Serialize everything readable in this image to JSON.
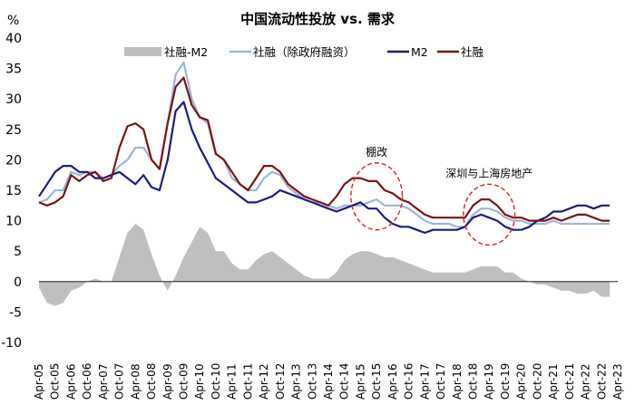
{
  "chart_data": {
    "type": "line",
    "title": "中国流动性投放 vs. 需求",
    "y_unit_label": "%",
    "ylim": [
      -10,
      40
    ],
    "yticks": [
      -10,
      -5,
      0,
      5,
      10,
      15,
      20,
      25,
      30,
      35,
      40
    ],
    "xlabel": "",
    "ylabel": "%",
    "x_start": "Apr-05",
    "x_end": "Apr-23",
    "x_ticks": [
      "Apr-05",
      "Oct-05",
      "Apr-06",
      "Oct-06",
      "Apr-07",
      "Oct-07",
      "Apr-08",
      "Oct-08",
      "Apr-09",
      "Oct-09",
      "Apr-10",
      "Oct-10",
      "Apr-11",
      "Oct-11",
      "Apr-12",
      "Oct-12",
      "Apr-13",
      "Oct-13",
      "Apr-14",
      "Oct-14",
      "Apr-15",
      "Oct-15",
      "Apr-16",
      "Oct-16",
      "Apr-17",
      "Oct-17",
      "Apr-18",
      "Oct-18",
      "Apr-19",
      "Oct-19",
      "Apr-20",
      "Oct-20",
      "Apr-21",
      "Oct-21",
      "Apr-22",
      "Oct-22",
      "Apr-23"
    ],
    "legend": [
      {
        "name": "社融-M2",
        "color": "#bfbfbf",
        "kind": "area"
      },
      {
        "name": "社融（除政府融资）",
        "color": "#9cb7d6",
        "kind": "line"
      },
      {
        "name": "M2",
        "color": "#1c1c84",
        "kind": "line"
      },
      {
        "name": "社融",
        "color": "#7b1416",
        "kind": "line"
      }
    ],
    "series": [
      {
        "name": "社融",
        "color": "#7b1416",
        "points": [
          [
            0,
            13
          ],
          [
            0.5,
            12.5
          ],
          [
            1,
            13
          ],
          [
            1.5,
            14
          ],
          [
            2,
            17.5
          ],
          [
            2.5,
            16.5
          ],
          [
            3,
            17.5
          ],
          [
            3.5,
            18
          ],
          [
            4,
            16.5
          ],
          [
            4.5,
            17
          ],
          [
            5,
            22
          ],
          [
            5.5,
            25.5
          ],
          [
            6,
            26
          ],
          [
            6.5,
            25
          ],
          [
            7,
            20
          ],
          [
            7.5,
            18.5
          ],
          [
            8,
            26
          ],
          [
            8.5,
            32
          ],
          [
            9,
            33.5
          ],
          [
            9.5,
            29
          ],
          [
            10,
            27
          ],
          [
            10.5,
            26.5
          ],
          [
            11,
            21
          ],
          [
            11.5,
            20
          ],
          [
            12,
            18
          ],
          [
            12.5,
            16
          ],
          [
            13,
            15
          ],
          [
            13.5,
            17
          ],
          [
            14,
            19
          ],
          [
            14.5,
            19
          ],
          [
            15,
            18
          ],
          [
            15.5,
            16
          ],
          [
            16,
            15
          ],
          [
            16.5,
            14
          ],
          [
            17,
            13.5
          ],
          [
            17.5,
            13
          ],
          [
            18,
            12.5
          ],
          [
            18.5,
            14
          ],
          [
            19,
            16
          ],
          [
            19.5,
            17
          ],
          [
            20,
            17
          ],
          [
            20.5,
            16.5
          ],
          [
            21,
            16.5
          ],
          [
            21.5,
            15
          ],
          [
            22,
            14.5
          ],
          [
            22.5,
            13.5
          ],
          [
            23,
            13
          ],
          [
            23.5,
            12
          ],
          [
            24,
            11
          ],
          [
            24.5,
            10.5
          ],
          [
            25,
            10.5
          ],
          [
            25.5,
            10.5
          ],
          [
            26,
            10.5
          ],
          [
            26.5,
            10.5
          ],
          [
            27,
            12.5
          ],
          [
            27.5,
            13.5
          ],
          [
            28,
            13.5
          ],
          [
            28.5,
            12.5
          ],
          [
            29,
            11
          ],
          [
            29.5,
            10.5
          ],
          [
            30,
            10.5
          ],
          [
            30.5,
            10
          ],
          [
            31,
            10
          ],
          [
            31.5,
            10
          ],
          [
            32,
            10.5
          ],
          [
            32.5,
            10
          ],
          [
            33,
            10.5
          ],
          [
            33.5,
            11
          ],
          [
            34,
            11
          ],
          [
            34.5,
            10.5
          ],
          [
            35,
            10
          ],
          [
            35.5,
            10
          ]
        ]
      },
      {
        "name": "社融（除政府融资）",
        "color": "#9cb7d6",
        "points": [
          [
            0,
            13
          ],
          [
            0.5,
            13.5
          ],
          [
            1,
            15
          ],
          [
            1.5,
            15
          ],
          [
            2,
            18
          ],
          [
            2.5,
            17.5
          ],
          [
            3,
            18
          ],
          [
            3.5,
            18
          ],
          [
            4,
            17
          ],
          [
            4.5,
            17.5
          ],
          [
            5,
            19
          ],
          [
            5.5,
            20
          ],
          [
            6,
            22
          ],
          [
            6.5,
            22
          ],
          [
            7,
            20
          ],
          [
            7.5,
            18.5
          ],
          [
            8,
            26
          ],
          [
            8.5,
            34
          ],
          [
            9,
            36
          ],
          [
            9.5,
            30
          ],
          [
            10,
            27
          ],
          [
            10.5,
            26
          ],
          [
            11,
            21
          ],
          [
            11.5,
            20
          ],
          [
            12,
            17
          ],
          [
            12.5,
            16
          ],
          [
            13,
            15
          ],
          [
            13.5,
            15
          ],
          [
            14,
            17
          ],
          [
            14.5,
            18
          ],
          [
            15,
            17.5
          ],
          [
            15.5,
            15.5
          ],
          [
            16,
            14.5
          ],
          [
            16.5,
            13.5
          ],
          [
            17,
            13
          ],
          [
            17.5,
            13
          ],
          [
            18,
            12.5
          ],
          [
            18.5,
            12
          ],
          [
            19,
            12.5
          ],
          [
            19.5,
            12.5
          ],
          [
            20,
            12.5
          ],
          [
            20.5,
            13
          ],
          [
            21,
            13.5
          ],
          [
            21.5,
            12.5
          ],
          [
            22,
            12.5
          ],
          [
            22.5,
            12.5
          ],
          [
            23,
            12
          ],
          [
            23.5,
            11
          ],
          [
            24,
            10
          ],
          [
            24.5,
            9.5
          ],
          [
            25,
            9.5
          ],
          [
            25.5,
            9.5
          ],
          [
            26,
            9
          ],
          [
            26.5,
            9
          ],
          [
            27,
            11
          ],
          [
            27.5,
            12
          ],
          [
            28,
            12
          ],
          [
            28.5,
            11.5
          ],
          [
            29,
            10.5
          ],
          [
            29.5,
            10
          ],
          [
            30,
            10
          ],
          [
            30.5,
            9.5
          ],
          [
            31,
            9.5
          ],
          [
            31.5,
            9.5
          ],
          [
            32,
            10
          ],
          [
            32.5,
            9.5
          ],
          [
            33,
            9.5
          ],
          [
            33.5,
            9.5
          ],
          [
            34,
            9.5
          ],
          [
            34.5,
            9.5
          ],
          [
            35,
            9.5
          ],
          [
            35.5,
            9.5
          ]
        ]
      },
      {
        "name": "M2",
        "color": "#1c1c84",
        "points": [
          [
            0,
            14
          ],
          [
            0.5,
            16
          ],
          [
            1,
            18
          ],
          [
            1.5,
            19
          ],
          [
            2,
            19
          ],
          [
            2.5,
            18
          ],
          [
            3,
            18
          ],
          [
            3.5,
            17
          ],
          [
            4,
            17
          ],
          [
            4.5,
            17.5
          ],
          [
            5,
            18
          ],
          [
            5.5,
            17
          ],
          [
            6,
            16
          ],
          [
            6.5,
            17.5
          ],
          [
            7,
            15.5
          ],
          [
            7.5,
            15
          ],
          [
            8,
            20
          ],
          [
            8.5,
            28
          ],
          [
            9,
            29.5
          ],
          [
            9.5,
            25
          ],
          [
            10,
            22
          ],
          [
            10.5,
            19.5
          ],
          [
            11,
            17
          ],
          [
            11.5,
            16
          ],
          [
            12,
            15
          ],
          [
            12.5,
            14
          ],
          [
            13,
            13
          ],
          [
            13.5,
            13
          ],
          [
            14,
            13.5
          ],
          [
            14.5,
            14
          ],
          [
            15,
            15
          ],
          [
            15.5,
            14.5
          ],
          [
            16,
            14
          ],
          [
            16.5,
            13.5
          ],
          [
            17,
            13
          ],
          [
            17.5,
            12.5
          ],
          [
            18,
            12
          ],
          [
            18.5,
            11.5
          ],
          [
            19,
            12
          ],
          [
            19.5,
            12.5
          ],
          [
            20,
            13
          ],
          [
            20.5,
            12
          ],
          [
            21,
            12
          ],
          [
            21.5,
            10.5
          ],
          [
            22,
            9.5
          ],
          [
            22.5,
            9
          ],
          [
            23,
            9
          ],
          [
            23.5,
            8.5
          ],
          [
            24,
            8
          ],
          [
            24.5,
            8.5
          ],
          [
            25,
            8.5
          ],
          [
            25.5,
            8.5
          ],
          [
            26,
            8.5
          ],
          [
            26.5,
            9
          ],
          [
            27,
            10.5
          ],
          [
            27.5,
            11
          ],
          [
            28,
            10.5
          ],
          [
            28.5,
            10
          ],
          [
            29,
            9
          ],
          [
            29.5,
            8.5
          ],
          [
            30,
            8.5
          ],
          [
            30.5,
            9
          ],
          [
            31,
            10
          ],
          [
            31.5,
            10.5
          ],
          [
            32,
            11.5
          ],
          [
            32.5,
            11.5
          ],
          [
            33,
            12
          ],
          [
            33.5,
            12.5
          ],
          [
            34,
            12.5
          ],
          [
            34.5,
            12
          ],
          [
            35,
            12.5
          ],
          [
            35.5,
            12.5
          ]
        ]
      },
      {
        "name": "社融-M2",
        "color": "#bfbfbf",
        "points": [
          [
            0,
            -1
          ],
          [
            0.5,
            -3.5
          ],
          [
            1,
            -4
          ],
          [
            1.5,
            -3.5
          ],
          [
            2,
            -1.5
          ],
          [
            2.5,
            -1
          ],
          [
            3,
            0
          ],
          [
            3.5,
            0.5
          ],
          [
            4,
            0
          ],
          [
            4.5,
            0
          ],
          [
            5,
            4
          ],
          [
            5.5,
            8
          ],
          [
            6,
            9.5
          ],
          [
            6.5,
            8.5
          ],
          [
            7,
            4.5
          ],
          [
            7.5,
            1
          ],
          [
            8,
            -1.5
          ],
          [
            8.5,
            1
          ],
          [
            9,
            4
          ],
          [
            9.5,
            6.5
          ],
          [
            10,
            9
          ],
          [
            10.5,
            8
          ],
          [
            11,
            5
          ],
          [
            11.5,
            5
          ],
          [
            12,
            3
          ],
          [
            12.5,
            2
          ],
          [
            13,
            2
          ],
          [
            13.5,
            3.5
          ],
          [
            14,
            4.5
          ],
          [
            14.5,
            5
          ],
          [
            15,
            4
          ],
          [
            15.5,
            3
          ],
          [
            16,
            2
          ],
          [
            16.5,
            1
          ],
          [
            17,
            0.5
          ],
          [
            17.5,
            0.5
          ],
          [
            18,
            0.5
          ],
          [
            18.5,
            1.5
          ],
          [
            19,
            3.5
          ],
          [
            19.5,
            4.5
          ],
          [
            20,
            5
          ],
          [
            20.5,
            5
          ],
          [
            21,
            4.5
          ],
          [
            21.5,
            4
          ],
          [
            22,
            4
          ],
          [
            22.5,
            3.5
          ],
          [
            23,
            3
          ],
          [
            23.5,
            2.5
          ],
          [
            24,
            2
          ],
          [
            24.5,
            1.5
          ],
          [
            25,
            1.5
          ],
          [
            25.5,
            1.5
          ],
          [
            26,
            1.5
          ],
          [
            26.5,
            1.5
          ],
          [
            27,
            2
          ],
          [
            27.5,
            2.5
          ],
          [
            28,
            2.5
          ],
          [
            28.5,
            2.5
          ],
          [
            29,
            1.5
          ],
          [
            29.5,
            1.5
          ],
          [
            30,
            0.5
          ],
          [
            30.5,
            0
          ],
          [
            31,
            -0.5
          ],
          [
            31.5,
            -0.5
          ],
          [
            32,
            -1
          ],
          [
            32.5,
            -1.5
          ],
          [
            33,
            -1.5
          ],
          [
            33.5,
            -2
          ],
          [
            34,
            -2
          ],
          [
            34.5,
            -1.5
          ],
          [
            35,
            -2.5
          ],
          [
            35.5,
            -2.5
          ]
        ]
      }
    ],
    "annotations": [
      {
        "text": "棚改",
        "center_x": 21,
        "center_y": 14,
        "rx": 1.6,
        "ry": 5.5
      },
      {
        "text": "深圳与上海房地产",
        "center_x": 28,
        "center_y": 11,
        "rx": 1.6,
        "ry": 5
      }
    ]
  }
}
